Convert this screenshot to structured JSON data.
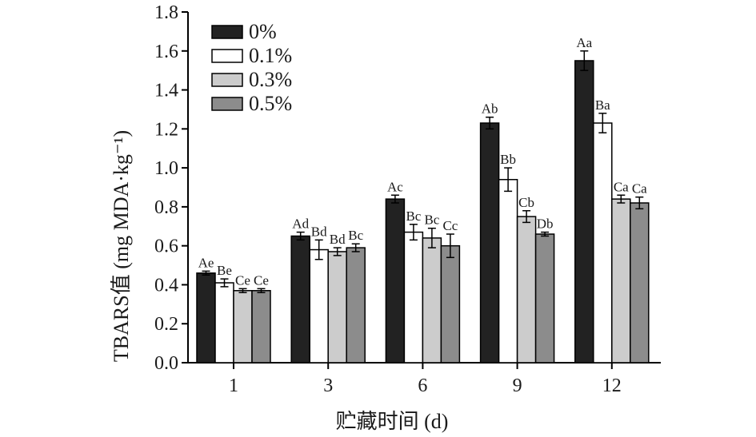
{
  "chart_data": {
    "type": "bar",
    "xlabel": "贮藏时间 (d)",
    "ylabel": "TBARS值 (mg MDA·kg⁻¹)",
    "ylim": [
      0,
      1.8
    ],
    "yticks": [
      "0.0",
      "0.2",
      "0.4",
      "0.6",
      "0.8",
      "1.0",
      "1.2",
      "1.4",
      "1.6",
      "1.8"
    ],
    "categories": [
      "1",
      "3",
      "6",
      "9",
      "12"
    ],
    "legend_position": "top-left",
    "grid": false,
    "series": [
      {
        "name": "0%",
        "color": "#222222",
        "values": [
          0.46,
          0.65,
          0.84,
          1.23,
          1.55
        ],
        "errors": [
          0.01,
          0.02,
          0.02,
          0.03,
          0.05
        ],
        "labels": [
          "Ae",
          "Ad",
          "Ac",
          "Ab",
          "Aa"
        ]
      },
      {
        "name": "0.1%",
        "color": "#ffffff",
        "values": [
          0.41,
          0.58,
          0.67,
          0.94,
          1.23
        ],
        "errors": [
          0.02,
          0.05,
          0.04,
          0.06,
          0.05
        ],
        "labels": [
          "Be",
          "Bd",
          "Bc",
          "Bb",
          "Ba"
        ]
      },
      {
        "name": "0.3%",
        "color": "#cccccc",
        "values": [
          0.37,
          0.57,
          0.64,
          0.75,
          0.84
        ],
        "errors": [
          0.01,
          0.02,
          0.05,
          0.03,
          0.02
        ],
        "labels": [
          "Ce",
          "Bd",
          "Bc",
          "Cb",
          "Ca"
        ]
      },
      {
        "name": "0.5%",
        "color": "#8c8c8c",
        "values": [
          0.37,
          0.59,
          0.6,
          0.66,
          0.82
        ],
        "errors": [
          0.01,
          0.02,
          0.06,
          0.01,
          0.03
        ],
        "labels": [
          "Ce",
          "Bc",
          "Cc",
          "Db",
          "Ca"
        ]
      }
    ]
  }
}
